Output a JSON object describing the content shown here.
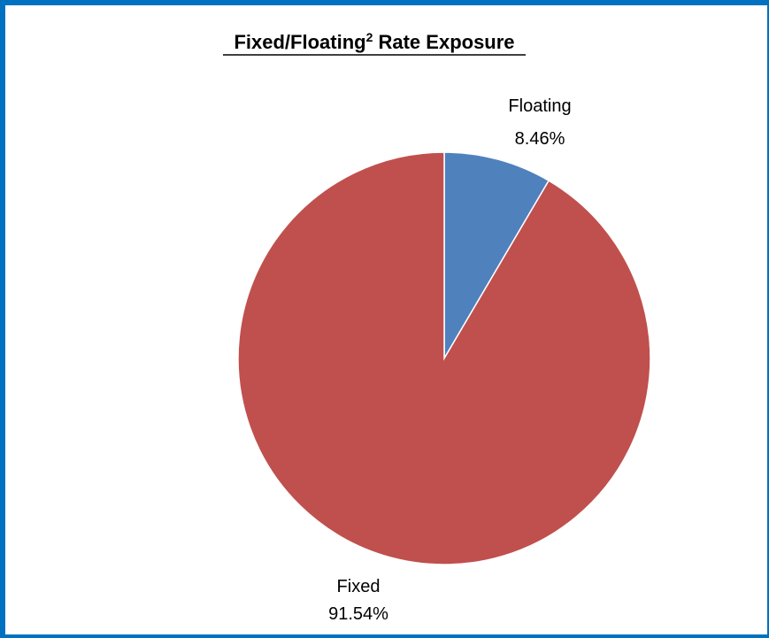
{
  "chart_data": {
    "type": "pie",
    "title": "Fixed/Floating",
    "title_superscript": "2",
    "title_suffix": " Rate Exposure",
    "start_angle": "12 o'clock",
    "direction": "clockwise",
    "legend": "none",
    "slices": [
      {
        "name": "Floating",
        "value": 8.46,
        "percent_label": "8.46%",
        "color": "#4F81BD"
      },
      {
        "name": "Fixed",
        "value": 91.54,
        "percent_label": "91.54%",
        "color": "#C0504D"
      }
    ]
  },
  "colors": {
    "frame": "#0070C0",
    "slice_border": "#ffffff"
  }
}
